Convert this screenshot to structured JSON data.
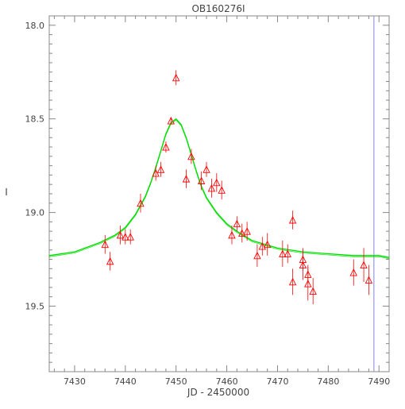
{
  "chart_data": {
    "type": "scatter",
    "title": "OB160276I",
    "xlabel": "JD - 2450000",
    "ylabel": "I",
    "xlim": [
      7425,
      7492
    ],
    "ylim": [
      19.85,
      17.95
    ],
    "y_inverted": true,
    "grid": false,
    "x_ticks": [
      {
        "value": 7430,
        "label": "7430"
      },
      {
        "value": 7440,
        "label": "7440"
      },
      {
        "value": 7450,
        "label": "7450"
      },
      {
        "value": 7460,
        "label": "7460"
      },
      {
        "value": 7470,
        "label": "7470"
      },
      {
        "value": 7480,
        "label": "7480"
      },
      {
        "value": 7490,
        "label": "7490"
      }
    ],
    "y_ticks": [
      {
        "value": 18.0,
        "label": "18.0"
      },
      {
        "value": 18.5,
        "label": "18.5"
      },
      {
        "value": 19.0,
        "label": "19.0"
      },
      {
        "value": 19.5,
        "label": "19.5"
      }
    ],
    "series": [
      {
        "kind": "points",
        "marker": "triangle",
        "color": "#ff0000",
        "x": [
          7436.0,
          7437.0,
          7439.0,
          7440.0,
          7441.0,
          7443.0,
          7446.0,
          7447.0,
          7448.0,
          7449.0,
          7450.0,
          7452.0,
          7453.0,
          7455.0,
          7456.0,
          7457.0,
          7458.0,
          7459.0,
          7461.0,
          7462.0,
          7463.0,
          7464.0,
          7466.0,
          7467.0,
          7468.0,
          7471.0,
          7472.0,
          7473.0,
          7473.0,
          7475.0,
          7475.0,
          7476.0,
          7476.0,
          7477.0,
          7485.0,
          7487.0,
          7488.0
        ],
        "y": [
          19.17,
          19.26,
          19.12,
          19.13,
          19.13,
          18.95,
          18.79,
          18.77,
          18.65,
          18.51,
          18.28,
          18.82,
          18.7,
          18.83,
          18.77,
          18.87,
          18.84,
          18.88,
          19.12,
          19.06,
          19.11,
          19.1,
          19.23,
          19.18,
          19.17,
          19.22,
          19.22,
          19.37,
          19.04,
          19.25,
          19.28,
          19.33,
          19.38,
          19.42,
          19.32,
          19.28,
          19.36
        ],
        "err": [
          0.05,
          0.05,
          0.05,
          0.04,
          0.04,
          0.05,
          0.04,
          0.04,
          0.03,
          0.02,
          0.04,
          0.05,
          0.04,
          0.05,
          0.04,
          0.05,
          0.05,
          0.05,
          0.05,
          0.04,
          0.05,
          0.05,
          0.06,
          0.05,
          0.06,
          0.07,
          0.05,
          0.07,
          0.05,
          0.06,
          0.08,
          0.05,
          0.09,
          0.07,
          0.07,
          0.09,
          0.08
        ]
      },
      {
        "kind": "model",
        "color": "#00dd00",
        "x": [
          7425,
          7430,
          7435,
          7438,
          7440,
          7442,
          7444,
          7445,
          7446,
          7447,
          7448,
          7449,
          7450,
          7451,
          7452,
          7453,
          7454,
          7455,
          7456,
          7458,
          7460,
          7462,
          7465,
          7470,
          7475,
          7480,
          7485,
          7490,
          7492
        ],
        "y": [
          19.23,
          19.21,
          19.16,
          19.12,
          19.08,
          19.01,
          18.91,
          18.84,
          18.76,
          18.67,
          18.58,
          18.52,
          18.5,
          18.53,
          18.6,
          18.69,
          18.78,
          18.86,
          18.92,
          19.0,
          19.06,
          19.1,
          19.15,
          19.19,
          19.21,
          19.22,
          19.23,
          19.23,
          19.24
        ]
      }
    ],
    "reference_line": {
      "x": 7489,
      "color": "#9999dd"
    }
  }
}
